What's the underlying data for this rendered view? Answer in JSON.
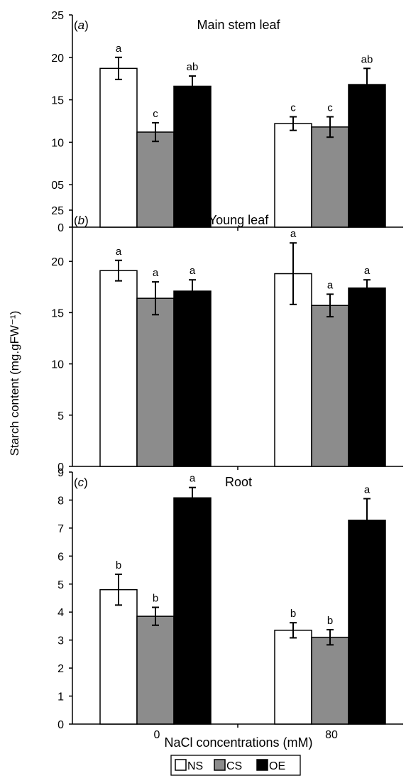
{
  "figure": {
    "ylabel": "Starch content (mg.gFW⁻¹)",
    "xlabel": "NaCl concentrations (mM)"
  },
  "legend": {
    "items": [
      {
        "label": "NS",
        "color": "#ffffff"
      },
      {
        "label": "CS",
        "color": "#8c8c8c"
      },
      {
        "label": "OE",
        "color": "#000000"
      }
    ]
  },
  "chart_data": [
    {
      "type": "bar",
      "panel": "(a)",
      "title": "Main stem leaf",
      "categories": [
        "0",
        "80"
      ],
      "ylim": [
        0,
        25
      ],
      "yticks": [
        0,
        5,
        10,
        15,
        20,
        25
      ],
      "ytick_labels": [
        "0",
        "05",
        "10",
        "15",
        "20",
        "25"
      ],
      "series": [
        {
          "name": "NS",
          "values": [
            18.7,
            12.2
          ],
          "errors": [
            1.3,
            0.8
          ],
          "letters": [
            "a",
            "c"
          ]
        },
        {
          "name": "CS",
          "values": [
            11.2,
            11.8
          ],
          "errors": [
            1.1,
            1.2
          ],
          "letters": [
            "c",
            "c"
          ]
        },
        {
          "name": "OE",
          "values": [
            16.6,
            16.8
          ],
          "errors": [
            1.2,
            1.9
          ],
          "letters": [
            "ab",
            "ab"
          ]
        }
      ]
    },
    {
      "type": "bar",
      "panel": "(b)",
      "title": "Young leaf",
      "categories": [
        "0",
        "80"
      ],
      "ylim": [
        0,
        25
      ],
      "yticks": [
        0,
        5,
        10,
        15,
        20,
        25
      ],
      "ytick_labels": [
        "0",
        "5",
        "10",
        "15",
        "20",
        "25"
      ],
      "series": [
        {
          "name": "NS",
          "values": [
            19.1,
            18.8
          ],
          "errors": [
            1.0,
            3.0
          ],
          "letters": [
            "a",
            "a"
          ]
        },
        {
          "name": "CS",
          "values": [
            16.4,
            15.7
          ],
          "errors": [
            1.6,
            1.1
          ],
          "letters": [
            "a",
            "a"
          ]
        },
        {
          "name": "OE",
          "values": [
            17.1,
            17.4
          ],
          "errors": [
            1.1,
            0.8
          ],
          "letters": [
            "a",
            "a"
          ]
        }
      ]
    },
    {
      "type": "bar",
      "panel": "(c)",
      "title": "Root",
      "categories": [
        "0",
        "80"
      ],
      "ylim": [
        0,
        9
      ],
      "yticks": [
        0,
        1,
        2,
        3,
        4,
        5,
        6,
        7,
        8,
        9
      ],
      "ytick_labels": [
        "0",
        "1",
        "2",
        "3",
        "4",
        "5",
        "6",
        "7",
        "8",
        "9"
      ],
      "series": [
        {
          "name": "NS",
          "values": [
            4.8,
            3.35
          ],
          "errors": [
            0.55,
            0.27
          ],
          "letters": [
            "b",
            "b"
          ]
        },
        {
          "name": "CS",
          "values": [
            3.85,
            3.1
          ],
          "errors": [
            0.32,
            0.27
          ],
          "letters": [
            "b",
            "b"
          ]
        },
        {
          "name": "OE",
          "values": [
            8.08,
            7.28
          ],
          "errors": [
            0.37,
            0.77
          ],
          "letters": [
            "a",
            "a"
          ]
        }
      ]
    }
  ]
}
